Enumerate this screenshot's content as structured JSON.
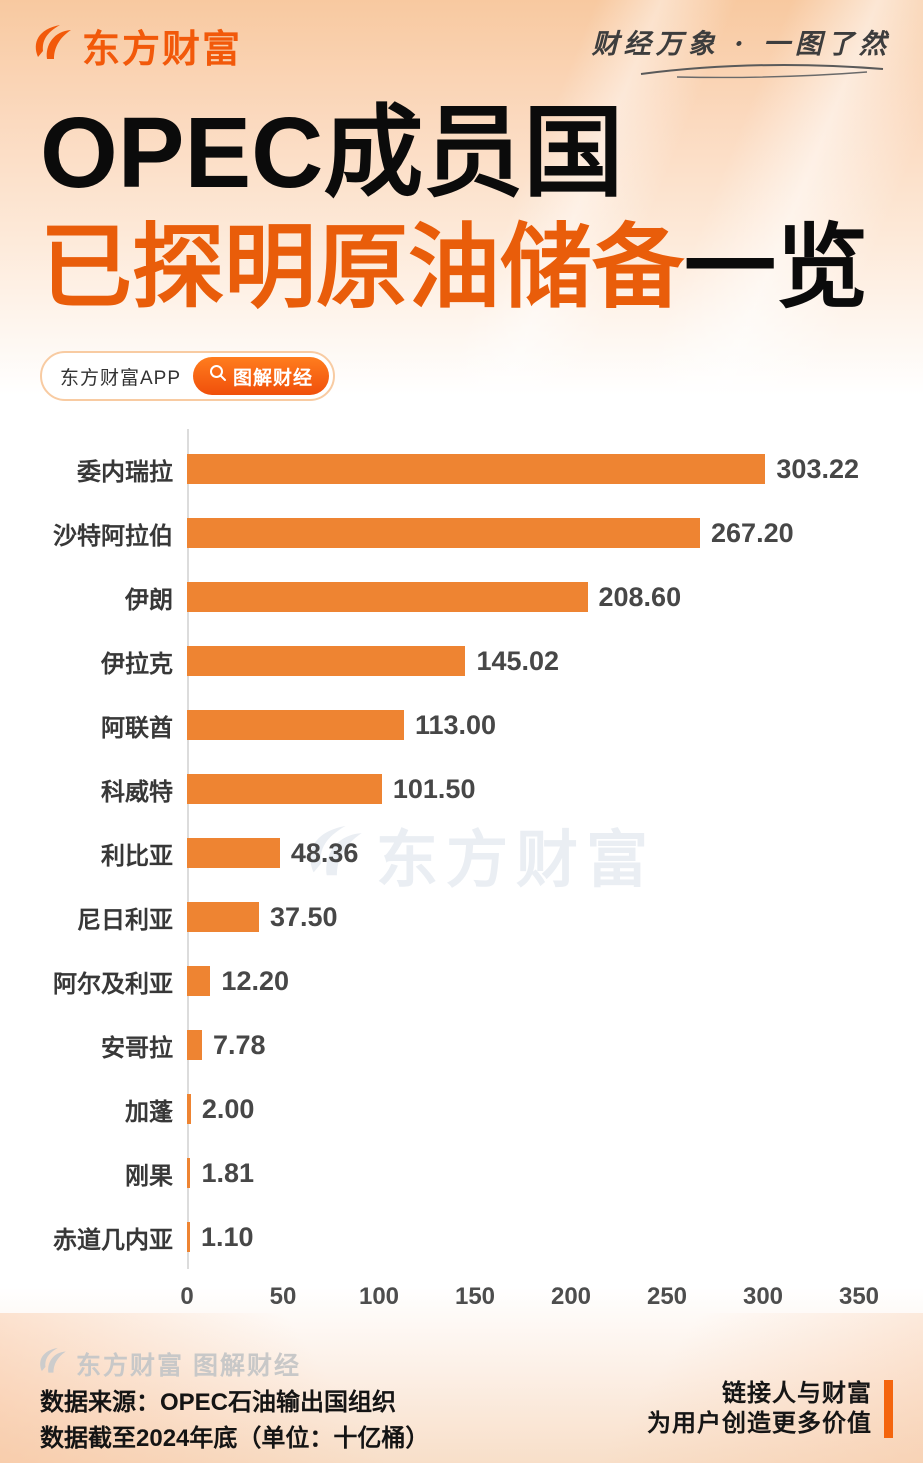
{
  "header": {
    "brand": "东方财富",
    "tagline": "财经万象 · 一图了然"
  },
  "title": {
    "line1": "OPEC成员国",
    "line2_highlight": "已探明原油储备",
    "line2_rest": "一览"
  },
  "badge": {
    "app_label": "东方财富APP",
    "search_label": "图解财经"
  },
  "chart_data": {
    "type": "bar",
    "orientation": "horizontal",
    "title": "OPEC成员国已探明原油储备一览",
    "unit": "十亿桶",
    "categories": [
      "委内瑞拉",
      "沙特阿拉伯",
      "伊朗",
      "伊拉克",
      "阿联酋",
      "科威特",
      "利比亚",
      "尼日利亚",
      "阿尔及利亚",
      "安哥拉",
      "加蓬",
      "刚果",
      "赤道几内亚"
    ],
    "values": [
      303.22,
      267.2,
      208.6,
      145.02,
      113.0,
      101.5,
      48.36,
      37.5,
      12.2,
      7.78,
      2.0,
      1.81,
      1.1
    ],
    "value_labels": [
      "303.22",
      "267.20",
      "208.60",
      "145.02",
      "113.00",
      "101.50",
      "48.36",
      "37.50",
      "12.20",
      "7.78",
      "2.00",
      "1.81",
      "1.10"
    ],
    "x_ticks": [
      0,
      50,
      100,
      150,
      200,
      250,
      300,
      350
    ],
    "xlim": [
      0,
      350
    ],
    "grid": false,
    "legend": false,
    "bar_color": "#EE8432",
    "watermark_text": "东方财富"
  },
  "footer": {
    "watermark_text": "东方财富 图解财经",
    "source_line1": "数据来源：OPEC石油输出国组织",
    "source_line2": "数据截至2024年底（单位：十亿桶）",
    "slogan_line1": "链接人与财富",
    "slogan_line2": "为用户创造更多价值"
  },
  "colors": {
    "accent_orange": "#E95D0A",
    "bar_orange": "#EE8432",
    "brand_orange": "#F2590A",
    "pill_orange": "#F3560C",
    "top_background": "#F8C9A0",
    "label_gray": "#383838",
    "watermark_gray": "#EAEEF3"
  },
  "icons": {
    "eastmoney-logo-icon": "brand swoosh",
    "search-icon": "magnifier"
  }
}
